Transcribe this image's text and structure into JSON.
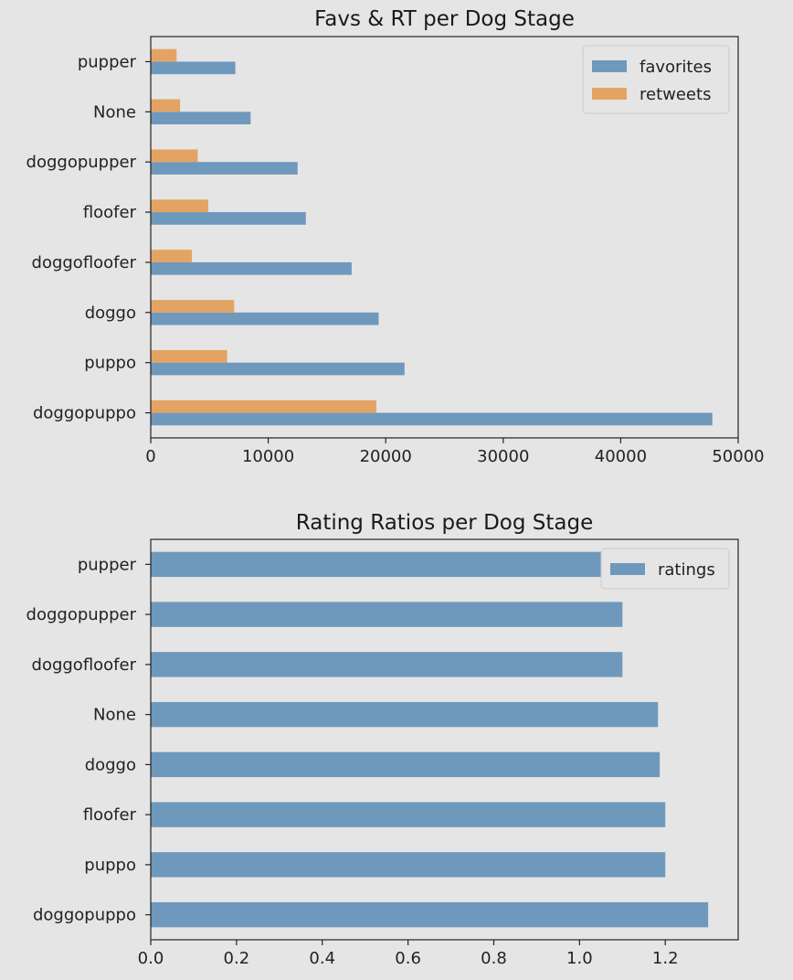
{
  "colors": {
    "background": "#e5e5e5",
    "favorites": "#6f98bd",
    "retweets": "#e3a463",
    "ratings": "#6f98bd"
  },
  "chart_data": [
    {
      "type": "bar",
      "orientation": "horizontal",
      "title": "Favs & RT per Dog Stage",
      "categories": [
        "doggopuppo",
        "puppo",
        "doggo",
        "doggofloofer",
        "floofer",
        "doggopupper",
        "None",
        "pupper"
      ],
      "series": [
        {
          "name": "favorites",
          "values": [
            47800,
            21600,
            19400,
            17100,
            13200,
            12500,
            8500,
            7200
          ]
        },
        {
          "name": "retweets",
          "values": [
            19200,
            6500,
            7100,
            3500,
            4900,
            4000,
            2500,
            2200
          ]
        }
      ],
      "x_ticks": [
        "0",
        "10000",
        "20000",
        "30000",
        "40000",
        "50000"
      ],
      "xlim": [
        0,
        50000
      ],
      "legend": "top-right",
      "grid": false
    },
    {
      "type": "bar",
      "orientation": "horizontal",
      "title": "Rating Ratios per Dog Stage",
      "categories": [
        "doggopuppo",
        "puppo",
        "floofer",
        "doggo",
        "None",
        "doggofloofer",
        "doggopupper",
        "pupper"
      ],
      "series": [
        {
          "name": "ratings",
          "values": [
            1.3,
            1.2,
            1.2,
            1.187,
            1.183,
            1.1,
            1.1,
            1.105
          ]
        }
      ],
      "x_ticks": [
        "0.0",
        "0.2",
        "0.4",
        "0.6",
        "0.8",
        "1.0",
        "1.2"
      ],
      "xlim": [
        0,
        1.37
      ],
      "legend": "top-right",
      "grid": false
    }
  ]
}
